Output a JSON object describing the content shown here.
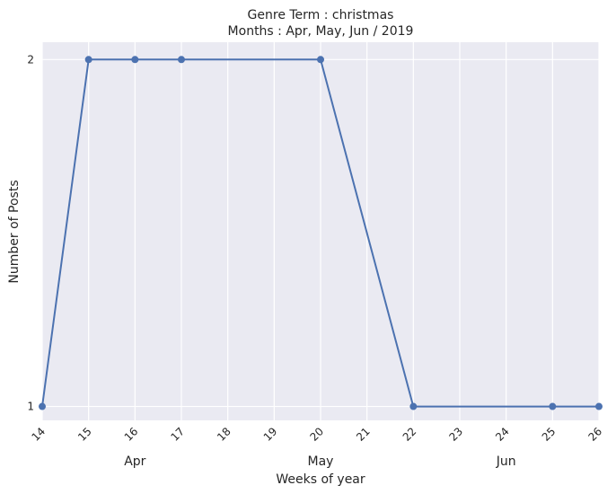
{
  "chart_data": {
    "type": "line",
    "title_lines": [
      "Genre Term : christmas",
      "Months : Apr, May, Jun / 2019"
    ],
    "xlabel": "Weeks of year",
    "ylabel": "Number of Posts",
    "x_ticks": [
      "14",
      "15",
      "16",
      "17",
      "18",
      "19",
      "20",
      "21",
      "22",
      "23",
      "24",
      "25",
      "26"
    ],
    "y_ticks": [
      "1",
      "2"
    ],
    "xlim": [
      14,
      26
    ],
    "ylim": [
      0.96,
      2.05
    ],
    "month_labels": [
      {
        "label": "Apr",
        "week": 16
      },
      {
        "label": "May",
        "week": 20
      },
      {
        "label": "Jun",
        "week": 24
      }
    ],
    "series": [
      {
        "x": [
          14,
          15,
          16,
          17,
          20,
          22,
          25,
          26
        ],
        "y": [
          1,
          2,
          2,
          2,
          2,
          1,
          1,
          1
        ],
        "markers": [
          true,
          true,
          true,
          true,
          true,
          true,
          true,
          true
        ],
        "color": "#4c72b0"
      }
    ],
    "grid": true,
    "background": "#eaeaf2"
  }
}
